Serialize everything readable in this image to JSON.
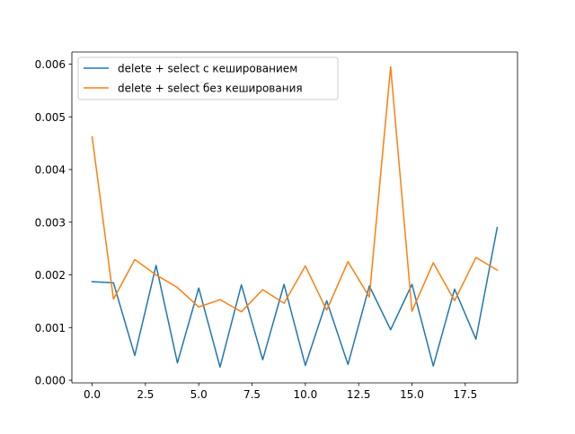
{
  "chart_data": {
    "type": "line",
    "title": "",
    "xlabel": "",
    "ylabel": "",
    "x": [
      0,
      1,
      2,
      3,
      4,
      5,
      6,
      7,
      8,
      9,
      10,
      11,
      12,
      13,
      14,
      15,
      16,
      17,
      18,
      19
    ],
    "xlim": [
      -0.95,
      19.95
    ],
    "ylim": [
      -5e-05,
      0.00623
    ],
    "xticks": [
      0.0,
      2.5,
      5.0,
      7.5,
      10.0,
      12.5,
      15.0,
      17.5
    ],
    "xtick_labels": [
      "0.0",
      "2.5",
      "5.0",
      "7.5",
      "10.0",
      "12.5",
      "15.0",
      "17.5"
    ],
    "yticks": [
      0.0,
      0.001,
      0.002,
      0.003,
      0.004,
      0.005,
      0.006
    ],
    "ytick_labels": [
      "0.000",
      "0.001",
      "0.002",
      "0.003",
      "0.004",
      "0.005",
      "0.006"
    ],
    "grid": false,
    "legend_position": "top-left",
    "series": [
      {
        "name": "delete + select с кешированием",
        "color": "#1f77b4",
        "values": [
          0.00187,
          0.00185,
          0.00047,
          0.00218,
          0.00033,
          0.00175,
          0.00025,
          0.00181,
          0.00039,
          0.00182,
          0.00028,
          0.00151,
          0.0003,
          0.00179,
          0.00096,
          0.00182,
          0.00027,
          0.00173,
          0.00078,
          0.0029
        ]
      },
      {
        "name": "delete + select без кеширования",
        "color": "#ff7f0e",
        "values": [
          0.00462,
          0.00154,
          0.00229,
          0.002,
          0.00176,
          0.00139,
          0.00153,
          0.0013,
          0.00172,
          0.00146,
          0.00217,
          0.00133,
          0.00225,
          0.00158,
          0.00595,
          0.00131,
          0.00223,
          0.00151,
          0.00233,
          0.00209
        ]
      }
    ]
  }
}
